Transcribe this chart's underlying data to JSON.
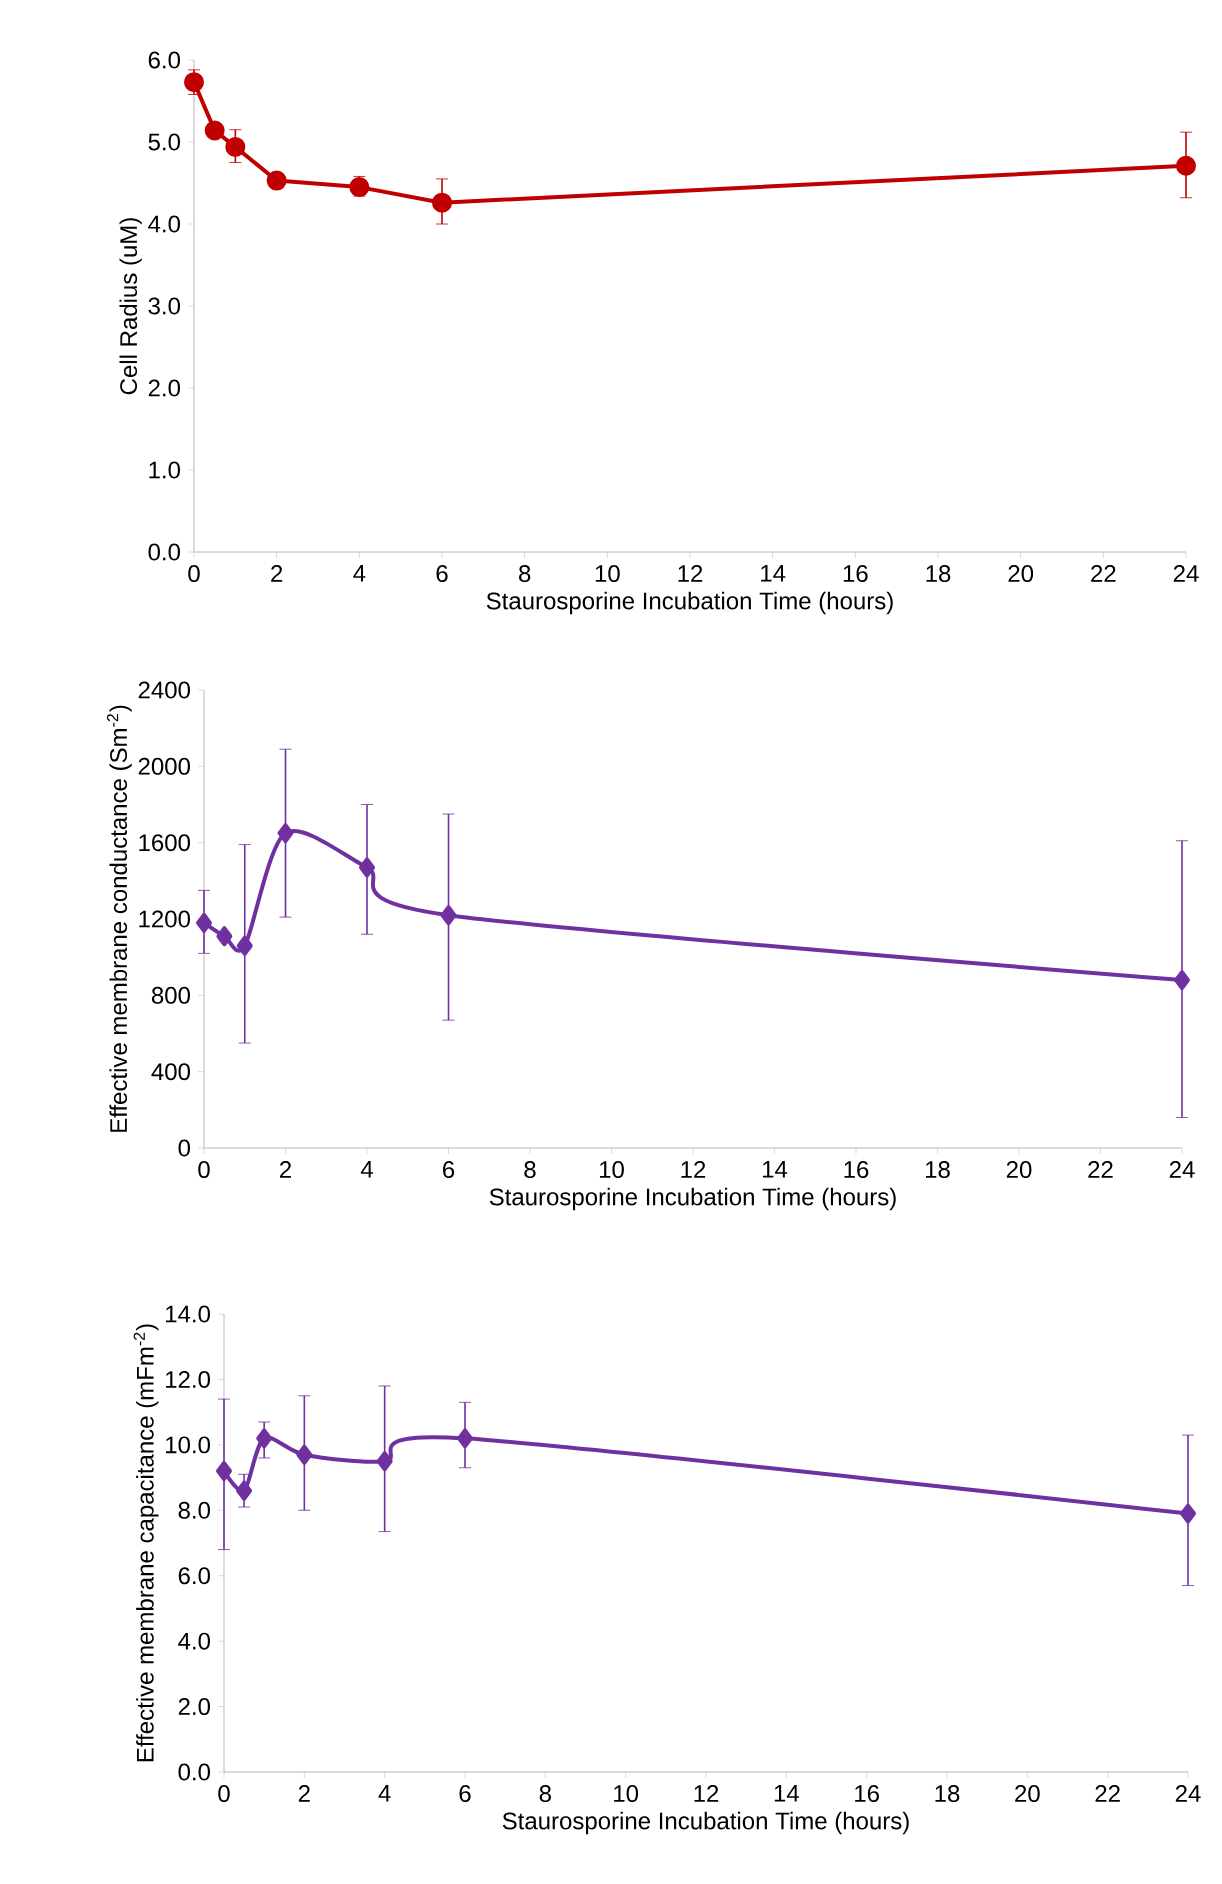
{
  "chart_data": [
    {
      "type": "line",
      "xlabel": "Staurosporine Incubation Time (hours)",
      "ylabel": "Cell Radius (uM)",
      "marker": "circle",
      "line_style": "solid",
      "x": [
        0,
        0.5,
        1,
        2,
        4,
        6,
        24
      ],
      "xlim": [
        0,
        24
      ],
      "xticks": [
        0,
        2,
        4,
        6,
        8,
        10,
        12,
        14,
        16,
        18,
        20,
        22,
        24
      ],
      "ylim": [
        0,
        6
      ],
      "yticks": [
        {
          "value": 0,
          "label": "0.0"
        },
        {
          "value": 1,
          "label": "1.0"
        },
        {
          "value": 2,
          "label": "2.0"
        },
        {
          "value": 3,
          "label": "3.0"
        },
        {
          "value": 4,
          "label": "4.0"
        },
        {
          "value": 5,
          "label": "5.0"
        },
        {
          "value": 6,
          "label": "6.0"
        }
      ],
      "series": [
        {
          "color": "#c00000",
          "values": [
            5.73,
            5.14,
            4.94,
            4.53,
            4.45,
            4.26,
            4.71
          ],
          "errors": [
            [
              5.58,
              5.88
            ],
            [
              5.08,
              5.22
            ],
            [
              4.75,
              5.15
            ],
            [
              4.46,
              4.62
            ],
            [
              4.34,
              4.58
            ],
            [
              4.0,
              4.55
            ],
            [
              4.32,
              5.12
            ]
          ]
        }
      ]
    },
    {
      "type": "line",
      "xlabel": "Staurosporine Incubation Time (hours)",
      "ylabel": "Effective membrane conductance (Sm$^{-2}$)",
      "marker": "diamond",
      "line_style": "solid",
      "x": [
        0,
        0.5,
        1,
        2,
        4,
        6,
        24
      ],
      "xlim": [
        0,
        24
      ],
      "xticks": [
        0,
        2,
        4,
        6,
        8,
        10,
        12,
        14,
        16,
        18,
        20,
        22,
        24
      ],
      "ylim": [
        0,
        2400
      ],
      "yticks": [
        0,
        400,
        800,
        1200,
        1600,
        2000,
        2400
      ],
      "series": [
        {
          "color": "#7030a0",
          "values": [
            1180,
            1110,
            1060,
            1650,
            1470,
            1220,
            880
          ],
          "errors": [
            [
              1020,
              1350
            ],
            null,
            [
              550,
              1590
            ],
            [
              1210,
              2090
            ],
            [
              1120,
              1800
            ],
            [
              670,
              1750
            ],
            [
              160,
              1610
            ]
          ]
        }
      ]
    },
    {
      "type": "line",
      "xlabel": "Staurosporine Incubation Time (hours)",
      "ylabel": "Effective membrane capacitance (mFm$^{-2}$)",
      "marker": "diamond",
      "line_style": "solid",
      "x": [
        0,
        0.5,
        1,
        2,
        4,
        6,
        24
      ],
      "xlim": [
        0,
        24
      ],
      "xticks": [
        0,
        2,
        4,
        6,
        8,
        10,
        12,
        14,
        16,
        18,
        20,
        22,
        24
      ],
      "ylim": [
        0,
        14
      ],
      "yticks": [
        {
          "value": 0,
          "label": "0.0"
        },
        {
          "value": 2,
          "label": "2.0"
        },
        {
          "value": 4,
          "label": "4.0"
        },
        {
          "value": 6,
          "label": "6.0"
        },
        {
          "value": 8,
          "label": "8.0"
        },
        {
          "value": 10,
          "label": "10.0"
        },
        {
          "value": 12,
          "label": "12.0"
        },
        {
          "value": 14,
          "label": "14.0"
        }
      ],
      "series": [
        {
          "color": "#7030a0",
          "values": [
            9.2,
            8.6,
            10.2,
            9.7,
            9.5,
            10.2,
            7.9
          ],
          "errors": [
            [
              6.8,
              11.4
            ],
            [
              8.1,
              9.1
            ],
            [
              9.6,
              10.7
            ],
            [
              8.0,
              11.5
            ],
            [
              7.35,
              11.8
            ],
            [
              9.3,
              11.3
            ],
            [
              5.7,
              10.3
            ]
          ]
        }
      ]
    }
  ]
}
